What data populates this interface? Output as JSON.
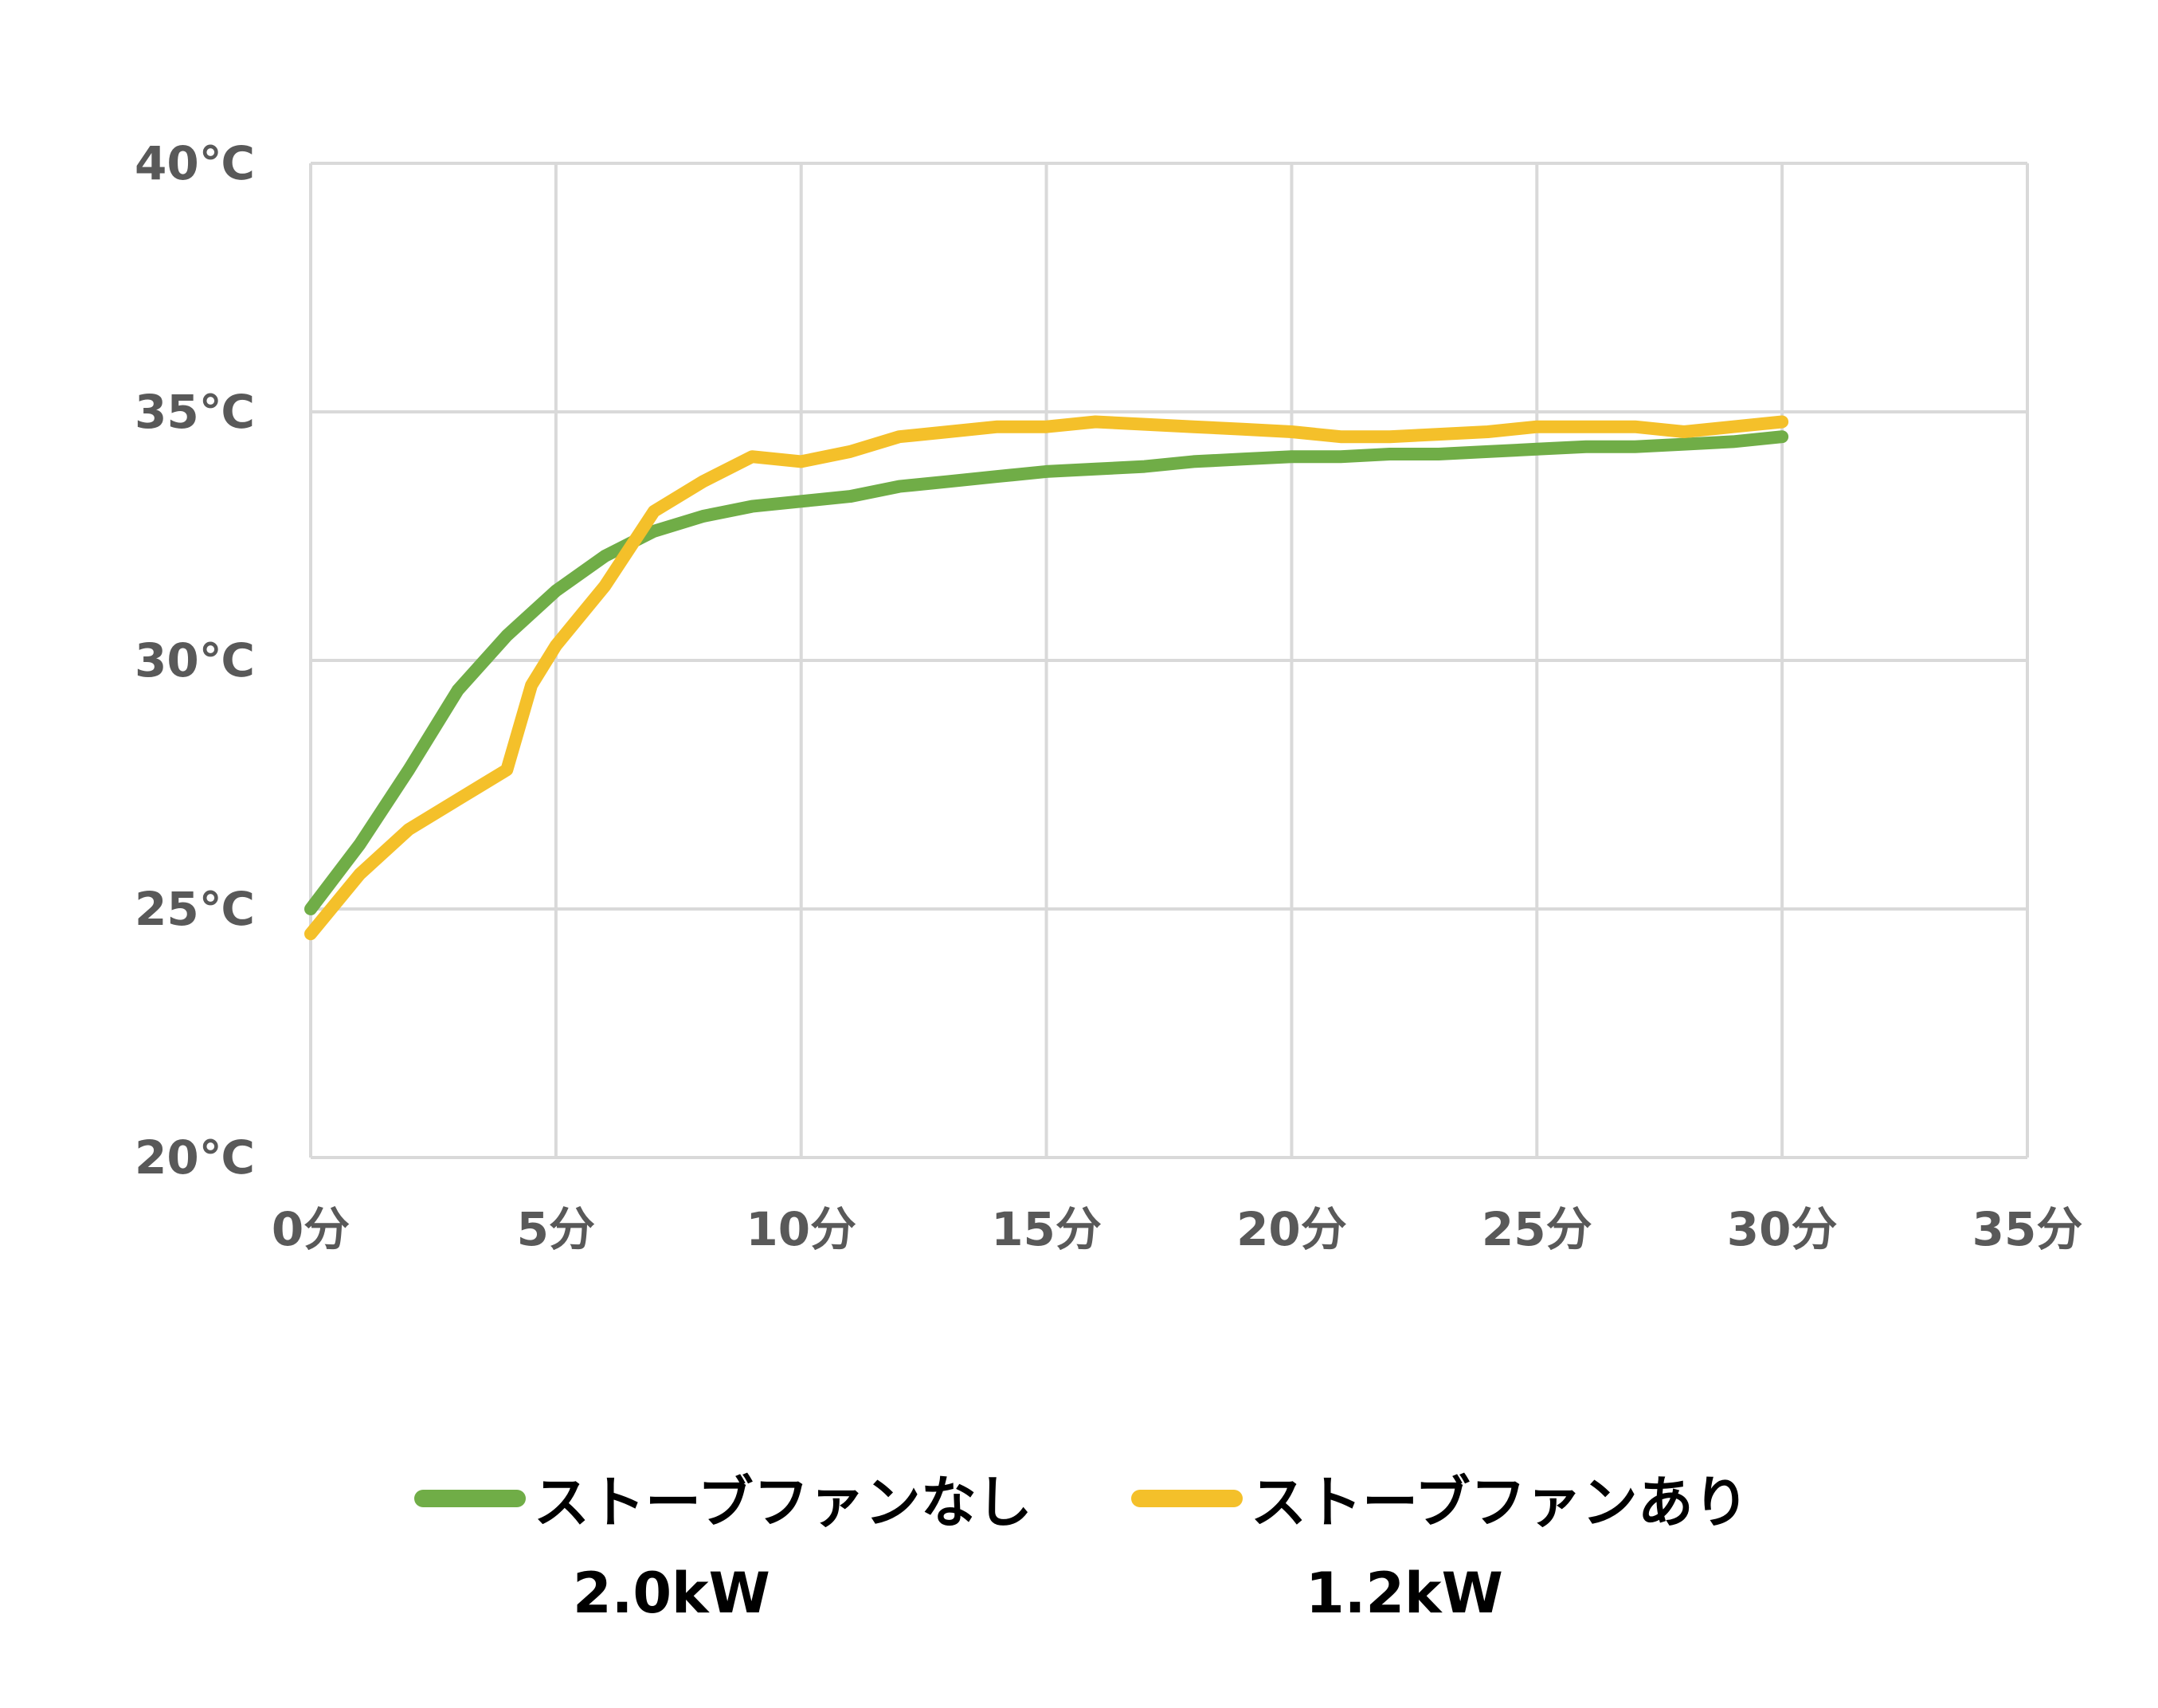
{
  "chart_data": {
    "type": "line",
    "title": "",
    "xlabel": "",
    "ylabel": "",
    "xlim": [
      0,
      35
    ],
    "ylim": [
      20,
      40
    ],
    "x_ticks": [
      0,
      5,
      10,
      15,
      20,
      25,
      30,
      35
    ],
    "x_tick_labels": [
      "0分",
      "5分",
      "10分",
      "15分",
      "20分",
      "25分",
      "30分",
      "35分"
    ],
    "y_ticks": [
      20,
      25,
      30,
      35,
      40
    ],
    "y_tick_labels": [
      "20℃",
      "25℃",
      "30℃",
      "35℃",
      "40℃"
    ],
    "grid": true,
    "legend_position": "bottom",
    "series": [
      {
        "name": "ストーブファンなし",
        "sublabel": "2.0kW",
        "color": "#70ad47",
        "x": [
          0,
          1,
          2,
          3,
          4,
          5,
          6,
          7,
          8,
          9,
          10,
          11,
          12,
          13,
          14,
          15,
          16,
          17,
          18,
          19,
          20,
          21,
          22,
          23,
          24,
          25,
          26,
          27,
          28,
          29,
          30
        ],
        "y": [
          25.0,
          26.3,
          27.8,
          29.4,
          30.5,
          31.4,
          32.1,
          32.6,
          32.9,
          33.1,
          33.2,
          33.3,
          33.5,
          33.6,
          33.7,
          33.8,
          33.85,
          33.9,
          34.0,
          34.05,
          34.1,
          34.1,
          34.15,
          34.15,
          34.2,
          34.25,
          34.3,
          34.3,
          34.35,
          34.4,
          34.5
        ]
      },
      {
        "name": "ストーブファンあり",
        "sublabel": "1.2kW",
        "color": "#f4c02a",
        "x": [
          0,
          1,
          2,
          3,
          3.5,
          4,
          4.5,
          5,
          6,
          7,
          8,
          9,
          10,
          11,
          12,
          13,
          14,
          15,
          16,
          17,
          18,
          19,
          20,
          21,
          22,
          23,
          24,
          25,
          26,
          27,
          28,
          29,
          30
        ],
        "y": [
          24.5,
          25.7,
          26.6,
          27.2,
          27.5,
          27.8,
          29.5,
          30.3,
          31.5,
          33.0,
          33.6,
          34.1,
          34.0,
          34.2,
          34.5,
          34.6,
          34.7,
          34.7,
          34.8,
          34.75,
          34.7,
          34.65,
          34.6,
          34.5,
          34.5,
          34.55,
          34.6,
          34.7,
          34.7,
          34.7,
          34.6,
          34.7,
          34.8
        ]
      }
    ]
  }
}
